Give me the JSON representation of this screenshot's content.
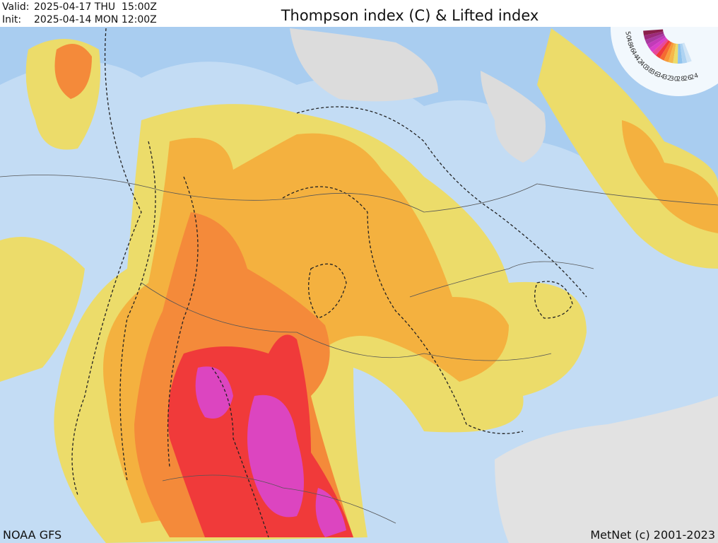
{
  "header": {
    "valid_label": "Valid:",
    "valid_time": "2025-04-17 THU  15:00Z",
    "init_label": "Init:",
    "init_time": "2025-04-14 MON 12:00Z",
    "title": "Thompson index (C) & Lifted index"
  },
  "legend": {
    "items": [
      {
        "value": 50,
        "color": "#8a1f4a"
      },
      {
        "value": 48,
        "color": "#9c2a7a"
      },
      {
        "value": 46,
        "color": "#a83aa0"
      },
      {
        "value": 44,
        "color": "#c23ab8"
      },
      {
        "value": 42,
        "color": "#d93fc8"
      },
      {
        "value": 40,
        "color": "#e8489a"
      },
      {
        "value": 38,
        "color": "#f03a3a"
      },
      {
        "value": 36,
        "color": "#f56a30"
      },
      {
        "value": 34,
        "color": "#f79a3a"
      },
      {
        "value": 32,
        "color": "#f5b84a"
      },
      {
        "value": 30,
        "color": "#ecdc6a"
      },
      {
        "value": 28,
        "color": "#8ec3ee"
      },
      {
        "value": 26,
        "color": "#aed3f2"
      },
      {
        "value": 24,
        "color": "#cfe4f6"
      }
    ]
  },
  "footer": {
    "source": "NOAA GFS",
    "credit": "MetNet (c) 2001-2023"
  }
}
